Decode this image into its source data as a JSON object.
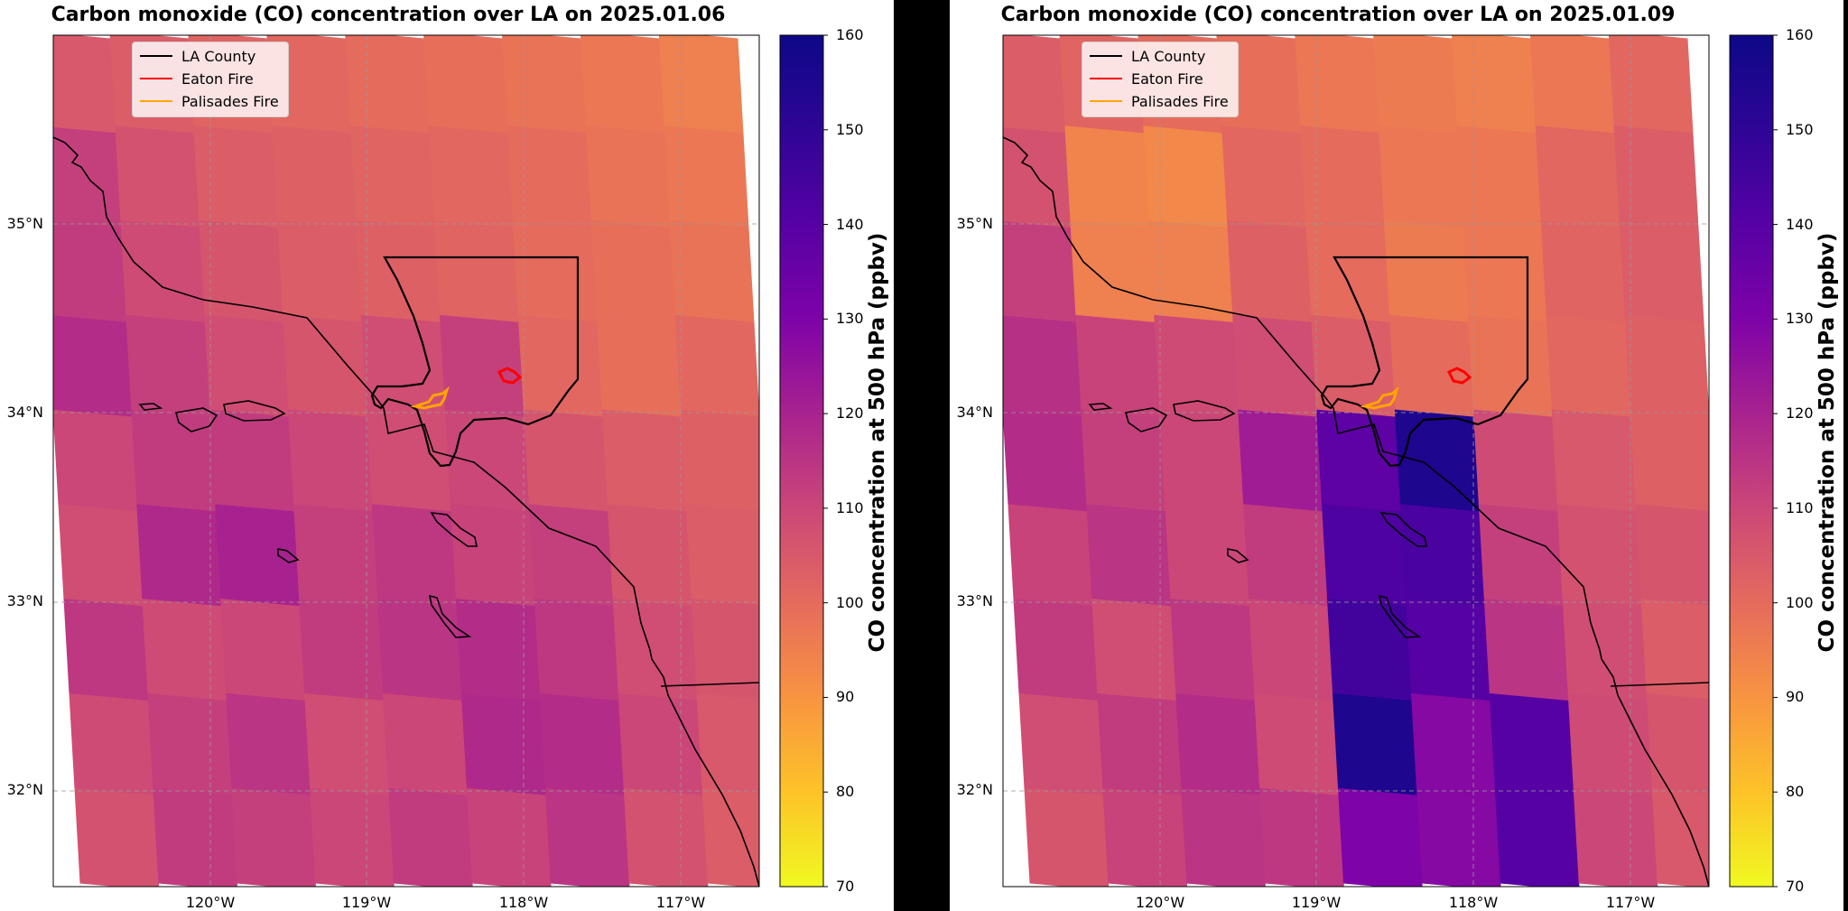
{
  "panels": [
    {
      "title": "Carbon monoxide (CO) concentration over LA on 2025.01.06",
      "legend": [
        "LA County",
        "Eaton Fire",
        "Palisades Fire"
      ],
      "colorbar_label": "CO concentration at 500 hPa (ppbv)"
    },
    {
      "title": "Carbon monoxide (CO) concentration over LA on 2025.01.09",
      "legend": [
        "LA County",
        "Eaton Fire",
        "Palisades Fire"
      ],
      "colorbar_label": "CO concentration at 500 hPa (ppbv)"
    }
  ],
  "axes": {
    "x_ticks": [
      "120°W",
      "119°W",
      "118°W",
      "117°W"
    ],
    "y_ticks": [
      "35°N",
      "34°N",
      "33°N",
      "32°N"
    ],
    "colorbar_ticks": [
      "160",
      "150",
      "140",
      "130",
      "120",
      "110",
      "100",
      "90",
      "80",
      "70"
    ]
  },
  "colors": {
    "la_county": "#000000",
    "eaton_fire": "#ff0000",
    "palisades_fire": "#ffa500",
    "colormap": "plasma_r"
  },
  "chart_data": [
    {
      "type": "heatmap",
      "title": "Carbon monoxide (CO) concentration over LA on 2025.01.06",
      "variable": "CO concentration at 500 hPa (ppbv)",
      "date": "2025.01.06",
      "lon_range": [
        -121.0,
        -116.5
      ],
      "lat_range": [
        31.5,
        36.0
      ],
      "colorbar_range": [
        70,
        160
      ],
      "grid": true,
      "legend_position": "top-left",
      "grid_lon": [
        -121.0,
        -120.5,
        -120.0,
        -119.5,
        -119.0,
        -118.5,
        -118.0,
        -117.5,
        -117.0,
        -116.5
      ],
      "grid_lat": [
        36.0,
        35.5,
        35.0,
        34.5,
        34.0,
        33.5,
        33.0,
        32.5,
        32.0,
        31.5
      ],
      "values": [
        [
          105,
          104,
          102,
          101,
          100,
          99,
          98,
          97,
          95
        ],
        [
          112,
          107,
          104,
          103,
          102,
          101,
          100,
          98,
          97
        ],
        [
          113,
          109,
          106,
          104,
          103,
          102,
          100,
          99,
          98
        ],
        [
          117,
          112,
          108,
          106,
          108,
          112,
          101,
          99,
          101
        ],
        [
          110,
          113,
          113,
          110,
          108,
          110,
          106,
          104,
          103
        ],
        [
          108,
          118,
          120,
          112,
          114,
          111,
          112,
          106,
          104
        ],
        [
          114,
          109,
          110,
          113,
          115,
          117,
          114,
          108,
          106
        ],
        [
          109,
          112,
          115,
          108,
          110,
          118,
          117,
          110,
          105
        ],
        [
          107,
          113,
          112,
          110,
          113,
          111,
          115,
          107,
          104
        ]
      ],
      "overlays": [
        "LA County",
        "Eaton Fire",
        "Palisades Fire"
      ]
    },
    {
      "type": "heatmap",
      "title": "Carbon monoxide (CO) concentration over LA on 2025.01.09",
      "variable": "CO concentration at 500 hPa (ppbv)",
      "date": "2025.01.09",
      "lon_range": [
        -121.0,
        -116.5
      ],
      "lat_range": [
        31.5,
        36.0
      ],
      "colorbar_range": [
        70,
        160
      ],
      "grid": true,
      "legend_position": "top-left",
      "grid_lon": [
        -121.0,
        -120.5,
        -120.0,
        -119.5,
        -119.0,
        -118.5,
        -118.0,
        -117.5,
        -117.0,
        -116.5
      ],
      "grid_lat": [
        36.0,
        35.5,
        35.0,
        34.5,
        34.0,
        33.5,
        33.0,
        32.5,
        32.0,
        31.5
      ],
      "values": [
        [
          104,
          102,
          100,
          99,
          97,
          96,
          95,
          97,
          101
        ],
        [
          107,
          94,
          93,
          101,
          100,
          97,
          97,
          101,
          104
        ],
        [
          112,
          95,
          95,
          103,
          100,
          96,
          97,
          102,
          104
        ],
        [
          116,
          111,
          109,
          108,
          104,
          100,
          98,
          101,
          103
        ],
        [
          117,
          112,
          110,
          122,
          138,
          155,
          109,
          105,
          103
        ],
        [
          111,
          115,
          110,
          113,
          142,
          143,
          112,
          107,
          106
        ],
        [
          113,
          108,
          114,
          110,
          145,
          140,
          115,
          108,
          104
        ],
        [
          108,
          113,
          117,
          109,
          155,
          128,
          140,
          109,
          106
        ],
        [
          106,
          111,
          115,
          114,
          130,
          128,
          140,
          110,
          105
        ]
      ],
      "overlays": [
        "LA County",
        "Eaton Fire",
        "Palisades Fire"
      ]
    }
  ]
}
